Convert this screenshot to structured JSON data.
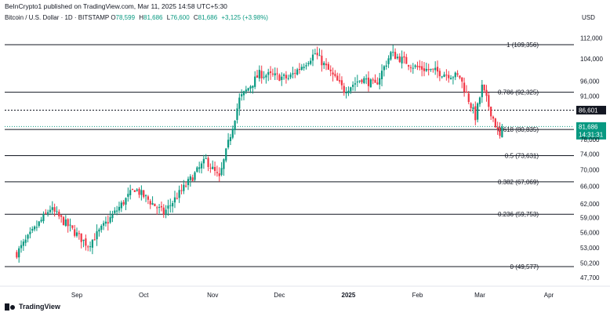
{
  "header": {
    "text": "BeInCrypto1 published on TradingView.com, Mar 11, 2025 14:58 UTC+5:30"
  },
  "symbol": {
    "name": "Bitcoin / U.S. Dollar · 1D · BITSTAMP",
    "open_label": "O",
    "open": "78,599",
    "high_label": "H",
    "high": "81,686",
    "low_label": "L",
    "low": "76,600",
    "close_label": "C",
    "close": "81,686",
    "change": "+3,125 (+3.98%)"
  },
  "currency": "USD",
  "footer": {
    "brand": "TradingView"
  },
  "colors": {
    "up": "#089981",
    "down": "#f23645",
    "grid": "#131722"
  },
  "chart_data": {
    "type": "candlestick",
    "y_axis": {
      "ticks": [
        "112,000",
        "104,000",
        "96,000",
        "91,000",
        "78,000",
        "74,000",
        "70,000",
        "66,000",
        "62,000",
        "59,000",
        "56,000",
        "53,000",
        "50,200",
        "47,700"
      ],
      "scale": "log"
    },
    "x_axis": {
      "ticks": [
        "Sep",
        "Oct",
        "Nov",
        "Dec",
        "2025",
        "Feb",
        "Mar",
        "Apr"
      ]
    },
    "fib_levels": [
      {
        "label": "1 (109,356)",
        "value": 109356
      },
      {
        "label": "0.786 (92,325)",
        "value": 92325
      },
      {
        "label": "0.618 (80,835)",
        "value": 80835
      },
      {
        "label": "0.5 (73,631)",
        "value": 73631
      },
      {
        "label": "0.382 (67,069)",
        "value": 67069
      },
      {
        "label": "0.236 (59,753)",
        "value": 59753
      },
      {
        "label": "0 (49,577)",
        "value": 49577
      }
    ],
    "price_labels": [
      {
        "text": "86,601",
        "value": 86601,
        "style": "dark"
      },
      {
        "text": "81,686",
        "value": 81686,
        "style": "green"
      }
    ],
    "countdown": "14:31:31",
    "anchors": [
      {
        "date": "2024-08-05",
        "value": 52000
      },
      {
        "date": "2024-08-20",
        "value": 61000
      },
      {
        "date": "2024-09-06",
        "value": 53500
      },
      {
        "date": "2024-09-27",
        "value": 65500
      },
      {
        "date": "2024-10-10",
        "value": 60000
      },
      {
        "date": "2024-10-29",
        "value": 72500
      },
      {
        "date": "2024-11-04",
        "value": 67800
      },
      {
        "date": "2024-11-13",
        "value": 90000
      },
      {
        "date": "2024-11-22",
        "value": 98500
      },
      {
        "date": "2024-12-05",
        "value": 97000
      },
      {
        "date": "2024-12-17",
        "value": 106000
      },
      {
        "date": "2024-12-30",
        "value": 93000
      },
      {
        "date": "2025-01-07",
        "value": 97000
      },
      {
        "date": "2025-01-13",
        "value": 94500
      },
      {
        "date": "2025-01-20",
        "value": 106000
      },
      {
        "date": "2025-01-31",
        "value": 101000
      },
      {
        "date": "2025-02-20",
        "value": 97500
      },
      {
        "date": "2025-02-27",
        "value": 84500
      },
      {
        "date": "2025-03-02",
        "value": 94000
      },
      {
        "date": "2025-03-10",
        "value": 78600
      },
      {
        "date": "2025-03-11",
        "value": 81686
      }
    ]
  }
}
